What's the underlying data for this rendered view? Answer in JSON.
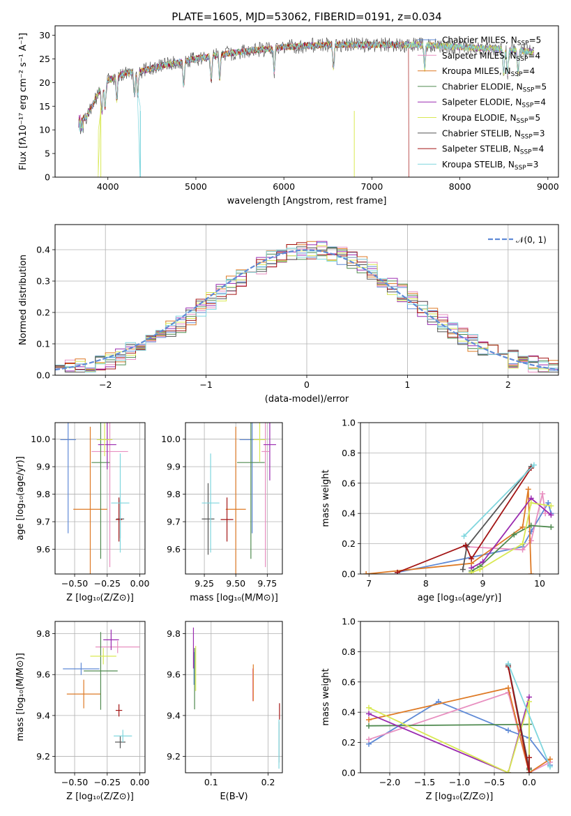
{
  "figure_title": "PLATE=1605, MJD=53062, FIBERID=0191, z=0.034",
  "colors": {
    "Chabrier MILES": "#5f8ad6",
    "Salpeter MILES": "#e88fc0",
    "Kroupa MILES": "#de7a25",
    "Chabrier ELODIE": "#4f8a4f",
    "Salpeter ELODIE": "#9a2ab0",
    "Kroupa ELODIE": "#d8e852",
    "Chabrier STELIB": "#555555",
    "Salpeter STELIB": "#a31515",
    "Kroupa STELIB": "#7fd6de",
    "normal": "#5f8ad6"
  },
  "chart_data": [
    {
      "id": "spectrum",
      "type": "line",
      "title": "PLATE=1605, MJD=53062, FIBERID=0191, z=0.034",
      "xlabel": "wavelength [Angstrom, rest frame]",
      "ylabel": "Flux [fλ10⁻¹⁷ erg cm⁻² s⁻¹ A⁻¹]",
      "xlim": [
        3400,
        9120
      ],
      "ylim": [
        0,
        32
      ],
      "xticks": [
        4000,
        5000,
        6000,
        7000,
        8000,
        9000
      ],
      "yticks": [
        0,
        5,
        10,
        15,
        20,
        25,
        30
      ],
      "grid": false,
      "legend_position": "top-right",
      "continuum": [
        [
          3660,
          13
        ],
        [
          3750,
          12.5
        ],
        [
          3900,
          18
        ],
        [
          4000,
          20.5
        ],
        [
          4200,
          22
        ],
        [
          4400,
          22.5
        ],
        [
          4600,
          23.5
        ],
        [
          5000,
          25
        ],
        [
          5500,
          26.5
        ],
        [
          6000,
          27.5
        ],
        [
          6500,
          28
        ],
        [
          7000,
          28
        ],
        [
          7500,
          28
        ],
        [
          8000,
          27.5
        ],
        [
          8500,
          27
        ],
        [
          8850,
          26.5
        ]
      ],
      "absorption_lines": [
        3934,
        3969,
        4101,
        4304,
        4340,
        4861,
        5175,
        5270,
        5890,
        6563,
        7600,
        8498,
        8542,
        8662
      ],
      "series": [
        {
          "name": "Chabrier MILES, N_SSP=5"
        },
        {
          "name": "Salpeter MILES, N_SSP=4"
        },
        {
          "name": "Kroupa MILES, N_SSP=4"
        },
        {
          "name": "Chabrier ELODIE, N_SSP=5"
        },
        {
          "name": "Salpeter ELODIE, N_SSP=4"
        },
        {
          "name": "Kroupa ELODIE, N_SSP=5"
        },
        {
          "name": "Chabrier STELIB, N_SSP=3"
        },
        {
          "name": "Salpeter STELIB, N_SSP=4"
        },
        {
          "name": "Kroupa STELIB, N_SSP=3"
        }
      ]
    },
    {
      "id": "residuals",
      "type": "histogram",
      "xlabel": "(data-model)/error",
      "ylabel": "Normed distribution",
      "xlim": [
        -2.5,
        2.5
      ],
      "ylim": [
        0,
        0.48
      ],
      "xticks": [
        -2,
        -1,
        0,
        1,
        2
      ],
      "yticks": [
        0.0,
        0.1,
        0.2,
        0.3,
        0.4
      ],
      "grid": true,
      "legend_position": "top-right",
      "legend_label": "𝒩(0, 1)",
      "bin_width": 0.1
    },
    {
      "id": "age_vs_Z",
      "type": "errorbar",
      "xlabel": "Z [log₁₀(Z/Z⊙)]",
      "ylabel": "age  [log₁₀(age/yr)]",
      "xlim": [
        -0.65,
        0.04
      ],
      "ylim": [
        9.51,
        10.06
      ],
      "xticks": [
        -0.5,
        -0.25,
        0.0
      ],
      "xticklabels": [
        "−0.50",
        "−0.25",
        "0.00"
      ],
      "yticks": [
        9.6,
        9.7,
        9.8,
        9.9,
        10.0
      ],
      "grid": true,
      "points": [
        {
          "model": "Chabrier MILES",
          "x": -0.55,
          "xerr": 0.06,
          "y": 9.998,
          "yerr": 0.34
        },
        {
          "model": "Salpeter MILES",
          "x": -0.23,
          "xerr": 0.14,
          "y": 9.955,
          "yerr": 0.42
        },
        {
          "model": "Kroupa MILES",
          "x": -0.38,
          "xerr": 0.13,
          "y": 9.745,
          "yerr": 0.3
        },
        {
          "model": "Chabrier ELODIE",
          "x": -0.3,
          "xerr": 0.07,
          "y": 9.915,
          "yerr": 0.35
        },
        {
          "model": "Salpeter ELODIE",
          "x": -0.25,
          "xerr": 0.07,
          "y": 9.98,
          "yerr": 0.09
        },
        {
          "model": "Kroupa ELODIE",
          "x": -0.27,
          "xerr": 0.06,
          "y": 9.998,
          "yerr": 0.06
        },
        {
          "model": "Chabrier STELIB",
          "x": -0.15,
          "xerr": 0.03,
          "y": 9.71,
          "yerr": 0.07
        },
        {
          "model": "Salpeter STELIB",
          "x": -0.16,
          "xerr": 0.025,
          "y": 9.708,
          "yerr": 0.08
        },
        {
          "model": "Kroupa STELIB",
          "x": -0.15,
          "xerr": 0.07,
          "y": 9.768,
          "yerr": 0.18
        }
      ]
    },
    {
      "id": "age_vs_mass",
      "type": "errorbar",
      "xlabel": "mass [log₁₀(M/M⊙)]",
      "ylabel": "",
      "xlim": [
        9.1,
        9.87
      ],
      "ylim": [
        9.51,
        10.06
      ],
      "xticks": [
        9.25,
        9.5,
        9.75
      ],
      "yticks": [
        9.6,
        9.7,
        9.8,
        9.9,
        10.0
      ],
      "grid": true,
      "points": [
        {
          "model": "Chabrier MILES",
          "x": 9.63,
          "xerr": 0.1,
          "y": 9.998,
          "yerr": 0.34
        },
        {
          "model": "Salpeter MILES",
          "x": 9.735,
          "xerr": 0.03,
          "y": 9.955,
          "yerr": 0.42
        },
        {
          "model": "Kroupa MILES",
          "x": 9.5,
          "xerr": 0.08,
          "y": 9.745,
          "yerr": 0.3
        },
        {
          "model": "Chabrier ELODIE",
          "x": 9.62,
          "xerr": 0.11,
          "y": 9.915,
          "yerr": 0.35
        },
        {
          "model": "Salpeter ELODIE",
          "x": 9.77,
          "xerr": 0.05,
          "y": 9.98,
          "yerr": 0.13
        },
        {
          "model": "Kroupa ELODIE",
          "x": 9.69,
          "xerr": 0.05,
          "y": 9.998,
          "yerr": 0.08
        },
        {
          "model": "Chabrier STELIB",
          "x": 9.28,
          "xerr": 0.05,
          "y": 9.71,
          "yerr": 0.13
        },
        {
          "model": "Salpeter STELIB",
          "x": 9.43,
          "xerr": 0.05,
          "y": 9.708,
          "yerr": 0.08
        },
        {
          "model": "Kroupa STELIB",
          "x": 9.3,
          "xerr": 0.07,
          "y": 9.768,
          "yerr": 0.18
        }
      ]
    },
    {
      "id": "mass_weight_vs_age",
      "type": "line",
      "xlabel": "age  [log₁₀(age/yr)]",
      "ylabel": "mass weight",
      "xlim": [
        6.85,
        10.33
      ],
      "ylim": [
        0,
        1
      ],
      "xticks": [
        7,
        8,
        9,
        10
      ],
      "yticks": [
        0.0,
        0.2,
        0.4,
        0.6,
        0.8,
        1.0
      ],
      "grid": true,
      "series": [
        {
          "model": "Chabrier MILES",
          "x": [
            7.5,
            9.7,
            9.85,
            10.15,
            10.2
          ],
          "y": [
            0.01,
            0.18,
            0.28,
            0.47,
            0.4
          ]
        },
        {
          "model": "Salpeter MILES",
          "x": [
            8.7,
            9.7,
            9.85,
            10.05,
            10.1
          ],
          "y": [
            0.18,
            0.16,
            0.22,
            0.53,
            0.4
          ]
        },
        {
          "model": "Kroupa MILES",
          "x": [
            6.95,
            8.8,
            9.7,
            9.8,
            9.85
          ],
          "y": [
            0.0,
            0.07,
            0.31,
            0.56,
            0.0
          ]
        },
        {
          "model": "Chabrier ELODIE",
          "x": [
            8.8,
            8.95,
            9.55,
            9.85,
            10.2
          ],
          "y": [
            0.02,
            0.05,
            0.26,
            0.32,
            0.31
          ]
        },
        {
          "model": "Salpeter ELODIE",
          "x": [
            8.8,
            9.0,
            9.85,
            10.2
          ],
          "y": [
            0.04,
            0.08,
            0.5,
            0.39
          ]
        },
        {
          "model": "Kroupa ELODIE",
          "x": [
            8.8,
            8.95,
            9.7,
            9.85,
            10.2
          ],
          "y": [
            0.01,
            0.03,
            0.2,
            0.47,
            0.45
          ]
        },
        {
          "model": "Chabrier STELIB",
          "x": [
            8.65,
            8.72,
            9.85
          ],
          "y": [
            0.03,
            0.18,
            0.71
          ]
        },
        {
          "model": "Salpeter STELIB",
          "x": [
            7.5,
            8.7,
            8.8,
            9.85
          ],
          "y": [
            0.01,
            0.19,
            0.1,
            0.7
          ]
        },
        {
          "model": "Kroupa STELIB",
          "x": [
            8.67,
            9.9
          ],
          "y": [
            0.25,
            0.72
          ]
        }
      ]
    },
    {
      "id": "mass_vs_Z",
      "type": "errorbar",
      "xlabel": "Z [log₁₀(Z/Z⊙)]",
      "ylabel": "mass [log₁₀(M/M⊙)]",
      "xlim": [
        -0.65,
        0.04
      ],
      "ylim": [
        9.12,
        9.86
      ],
      "xticks": [
        -0.5,
        -0.25,
        0.0
      ],
      "xticklabels": [
        "−0.50",
        "−0.25",
        "0.00"
      ],
      "yticks": [
        9.2,
        9.4,
        9.6,
        9.8
      ],
      "grid": true,
      "points": [
        {
          "model": "Chabrier MILES",
          "x": -0.45,
          "xerr": 0.14,
          "y": 9.628,
          "yerr": 0.03
        },
        {
          "model": "Salpeter MILES",
          "x": -0.17,
          "xerr": 0.17,
          "y": 9.735,
          "yerr": 0.03
        },
        {
          "model": "Kroupa MILES",
          "x": -0.43,
          "xerr": 0.13,
          "y": 9.505,
          "yerr": 0.07
        },
        {
          "model": "Chabrier ELODIE",
          "x": -0.3,
          "xerr": 0.13,
          "y": 9.618,
          "yerr": 0.19
        },
        {
          "model": "Salpeter ELODIE",
          "x": -0.22,
          "xerr": 0.06,
          "y": 9.77,
          "yerr": 0.05
        },
        {
          "model": "Kroupa ELODIE",
          "x": -0.28,
          "xerr": 0.1,
          "y": 9.69,
          "yerr": 0.04
        },
        {
          "model": "Chabrier STELIB",
          "x": -0.15,
          "xerr": 0.04,
          "y": 9.27,
          "yerr": 0.03
        },
        {
          "model": "Salpeter STELIB",
          "x": -0.16,
          "xerr": 0.025,
          "y": 9.425,
          "yerr": 0.03
        },
        {
          "model": "Kroupa STELIB",
          "x": -0.13,
          "xerr": 0.07,
          "y": 9.3,
          "yerr": 0.03
        }
      ]
    },
    {
      "id": "mass_vs_ebv",
      "type": "errorbar",
      "xlabel": "E(B-V)",
      "ylabel": "",
      "xlim": [
        0.055,
        0.225
      ],
      "ylim": [
        9.12,
        9.86
      ],
      "xticks": [
        0.1,
        0.2
      ],
      "yticks": [
        9.2,
        9.4,
        9.6,
        9.8
      ],
      "grid": true,
      "points": [
        {
          "model": "Chabrier MILES",
          "x": 0.07,
          "xerr": 0,
          "y": 9.63,
          "yerr": 0.08
        },
        {
          "model": "Salpeter MILES",
          "x": 0.173,
          "xerr": 0,
          "y": 9.55,
          "yerr": 0.08
        },
        {
          "model": "Kroupa MILES",
          "x": 0.174,
          "xerr": 0,
          "y": 9.56,
          "yerr": 0.09
        },
        {
          "model": "Chabrier ELODIE",
          "x": 0.071,
          "xerr": 0,
          "y": 9.58,
          "yerr": 0.15
        },
        {
          "model": "Salpeter ELODIE",
          "x": 0.069,
          "xerr": 0,
          "y": 9.73,
          "yerr": 0.1
        },
        {
          "model": "Kroupa ELODIE",
          "x": 0.073,
          "xerr": 0,
          "y": 9.63,
          "yerr": 0.11
        },
        {
          "model": "Chabrier STELIB",
          "x": 0.219,
          "xerr": 0,
          "y": 9.27,
          "yerr": 0.1
        },
        {
          "model": "Salpeter STELIB",
          "x": 0.22,
          "xerr": 0,
          "y": 9.42,
          "yerr": 0.04
        },
        {
          "model": "Kroupa STELIB",
          "x": 0.219,
          "xerr": 0,
          "y": 9.26,
          "yerr": 0.12
        }
      ]
    },
    {
      "id": "mass_weight_vs_Z",
      "type": "line",
      "xlabel": "Z [log₁₀(Z/Z⊙)]",
      "ylabel": "mass weight",
      "xlim": [
        -2.42,
        0.42
      ],
      "ylim": [
        0,
        1
      ],
      "xticks": [
        -2.0,
        -1.5,
        -1.0,
        -0.5,
        0.0
      ],
      "yticks": [
        0.0,
        0.2,
        0.4,
        0.6,
        0.8,
        1.0
      ],
      "grid": true,
      "series": [
        {
          "model": "Chabrier MILES",
          "x": [
            -2.3,
            -1.3,
            -0.3,
            0.0,
            0.3
          ],
          "y": [
            0.19,
            0.47,
            0.28,
            0.23,
            0.05
          ]
        },
        {
          "model": "Salpeter MILES",
          "x": [
            -2.3,
            -0.3,
            0.0,
            0.3
          ],
          "y": [
            0.22,
            0.53,
            0.0,
            0.07
          ]
        },
        {
          "model": "Kroupa MILES",
          "x": [
            -2.3,
            -0.3,
            0.0,
            0.3
          ],
          "y": [
            0.35,
            0.56,
            0.0,
            0.09
          ]
        },
        {
          "model": "Chabrier ELODIE",
          "x": [
            -2.3,
            0.0,
            0.0
          ],
          "y": [
            0.31,
            0.32,
            0.02
          ]
        },
        {
          "model": "Salpeter ELODIE",
          "x": [
            -2.3,
            -0.3,
            0.0,
            0.0
          ],
          "y": [
            0.39,
            0.0,
            0.5,
            0.1
          ]
        },
        {
          "model": "Kroupa ELODIE",
          "x": [
            -2.3,
            -0.3,
            0.0,
            0.0
          ],
          "y": [
            0.43,
            0.0,
            0.47,
            0.03
          ]
        },
        {
          "model": "Chabrier STELIB",
          "x": [
            -0.3,
            0.0
          ],
          "y": [
            0.71,
            0.03
          ]
        },
        {
          "model": "Salpeter STELIB",
          "x": [
            -0.3,
            0.0,
            0.0
          ],
          "y": [
            0.7,
            0.0,
            0.1
          ]
        },
        {
          "model": "Kroupa STELIB",
          "x": [
            -0.3,
            0.3
          ],
          "y": [
            0.72,
            0.04
          ]
        }
      ]
    }
  ]
}
